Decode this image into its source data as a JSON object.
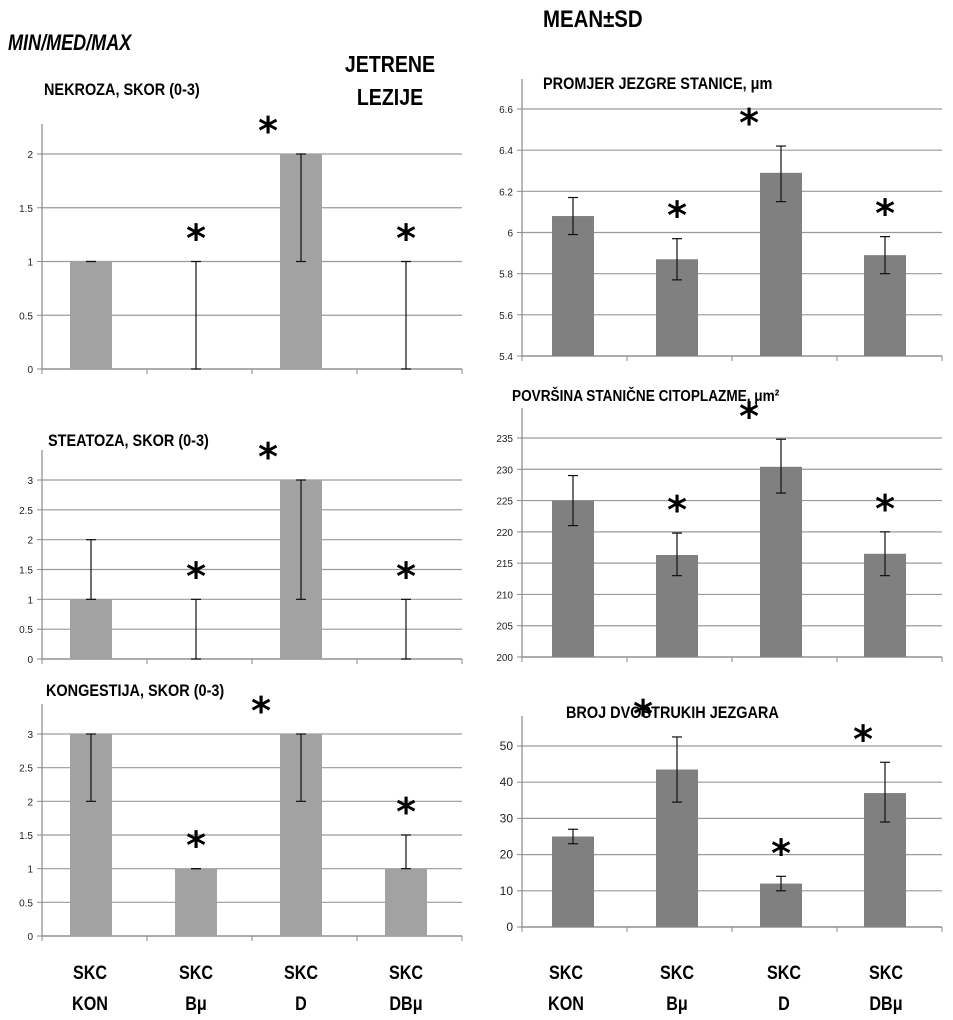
{
  "headers": {
    "left": "MIN/MED/MAX",
    "right": "MEAN±SD",
    "center_line1": "JETRENE",
    "center_line2": "LEZIJE"
  },
  "categories": [
    {
      "line1": "SKC",
      "line2": "KON"
    },
    {
      "line1": "SKC",
      "line2": "Bμ"
    },
    {
      "line1": "SKC",
      "line2": "D"
    },
    {
      "line1": "SKC",
      "line2": "DBμ"
    }
  ],
  "colors": {
    "bar_left": "#a2a2a2",
    "bar_right": "#808080",
    "grid": "#9a9a9a",
    "axis": "#8a8a8a"
  },
  "chart_data": [
    {
      "type": "bar",
      "title": "NEKROZA, SKOR (0-3)",
      "categories": [
        "SKC KON",
        "SKC Bμ",
        "SKC D",
        "SKC DBμ"
      ],
      "values": [
        1,
        0,
        2,
        0
      ],
      "err_low": [
        1,
        0,
        1,
        0
      ],
      "err_high": [
        1,
        1,
        2,
        1
      ],
      "significant": [
        false,
        true,
        true,
        true
      ],
      "ylim": [
        0,
        2
      ],
      "yticks": [
        "0",
        "0.5",
        "1",
        "1.5",
        "2"
      ],
      "tick_values": [
        0,
        0.5,
        1,
        1.5,
        2
      ],
      "grid": true,
      "statistic": "min/med/max"
    },
    {
      "type": "bar",
      "title": "STEATOZA, SKOR (0-3)",
      "categories": [
        "SKC KON",
        "SKC Bμ",
        "SKC D",
        "SKC DBμ"
      ],
      "values": [
        1,
        0,
        3,
        0
      ],
      "err_low": [
        1,
        0,
        1,
        0
      ],
      "err_high": [
        2,
        1,
        3,
        1
      ],
      "significant": [
        false,
        true,
        true,
        true
      ],
      "ylim": [
        0,
        3
      ],
      "yticks": [
        "0",
        "0.5",
        "1",
        "1.5",
        "2",
        "2.5",
        "3"
      ],
      "tick_values": [
        0,
        0.5,
        1,
        1.5,
        2,
        2.5,
        3
      ],
      "grid": true,
      "statistic": "min/med/max"
    },
    {
      "type": "bar",
      "title": "KONGESTIJA, SKOR (0-3)",
      "categories": [
        "SKC KON",
        "SKC Bμ",
        "SKC D",
        "SKC DBμ"
      ],
      "values": [
        3,
        1,
        3,
        1
      ],
      "err_low": [
        2,
        1,
        2,
        1
      ],
      "err_high": [
        3,
        1,
        3,
        1.5
      ],
      "significant": [
        false,
        true,
        true,
        true
      ],
      "ylim": [
        0,
        3
      ],
      "yticks": [
        "0",
        "0.5",
        "1",
        "1.5",
        "2",
        "2.5",
        "3"
      ],
      "tick_values": [
        0,
        0.5,
        1,
        1.5,
        2,
        2.5,
        3
      ],
      "grid": true,
      "statistic": "min/med/max"
    },
    {
      "type": "bar",
      "title": "PROMJER JEZGRE STANICE, μm",
      "categories": [
        "SKC KON",
        "SKC Bμ",
        "SKC D",
        "SKC DBμ"
      ],
      "values": [
        6.08,
        5.87,
        6.29,
        5.89
      ],
      "err_low": [
        5.99,
        5.77,
        6.15,
        5.8
      ],
      "err_high": [
        6.17,
        5.97,
        6.42,
        5.98
      ],
      "significant": [
        false,
        true,
        true,
        true
      ],
      "ylim": [
        5.4,
        6.6
      ],
      "yticks": [
        "5.4",
        "5.6",
        "5.8",
        "6",
        "6.2",
        "6.4",
        "6.6"
      ],
      "tick_values": [
        5.4,
        5.6,
        5.8,
        6,
        6.2,
        6.4,
        6.6
      ],
      "grid": true,
      "statistic": "mean±sd"
    },
    {
      "type": "bar",
      "title": "POVRŠINA STANIČNE CITOPLAZME, μm²",
      "categories": [
        "SKC KON",
        "SKC Bμ",
        "SKC D",
        "SKC DBμ"
      ],
      "values": [
        225,
        216.3,
        230.4,
        216.5
      ],
      "err_low": [
        221,
        213,
        226.2,
        213
      ],
      "err_high": [
        229,
        219.8,
        234.8,
        220
      ],
      "significant": [
        false,
        true,
        true,
        true
      ],
      "ylim": [
        200,
        235
      ],
      "yticks": [
        "200",
        "205",
        "210",
        "215",
        "220",
        "225",
        "230",
        "235"
      ],
      "tick_values": [
        200,
        205,
        210,
        215,
        220,
        225,
        230,
        235
      ],
      "grid": true,
      "statistic": "mean±sd"
    },
    {
      "type": "bar",
      "title": "BROJ DVOSTRUKIH JEZGARA",
      "categories": [
        "SKC KON",
        "SKC Bμ",
        "SKC D",
        "SKC DBμ"
      ],
      "values": [
        25,
        43.5,
        12,
        37
      ],
      "err_low": [
        23,
        34.5,
        10,
        29
      ],
      "err_high": [
        27,
        52.5,
        14,
        45.5
      ],
      "significant": [
        false,
        true,
        true,
        true
      ],
      "ylim": [
        0,
        50
      ],
      "yticks": [
        "0",
        "10",
        "20",
        "30",
        "40",
        "50"
      ],
      "tick_values": [
        0,
        10,
        20,
        30,
        40,
        50
      ],
      "grid": true,
      "statistic": "mean±sd"
    }
  ]
}
